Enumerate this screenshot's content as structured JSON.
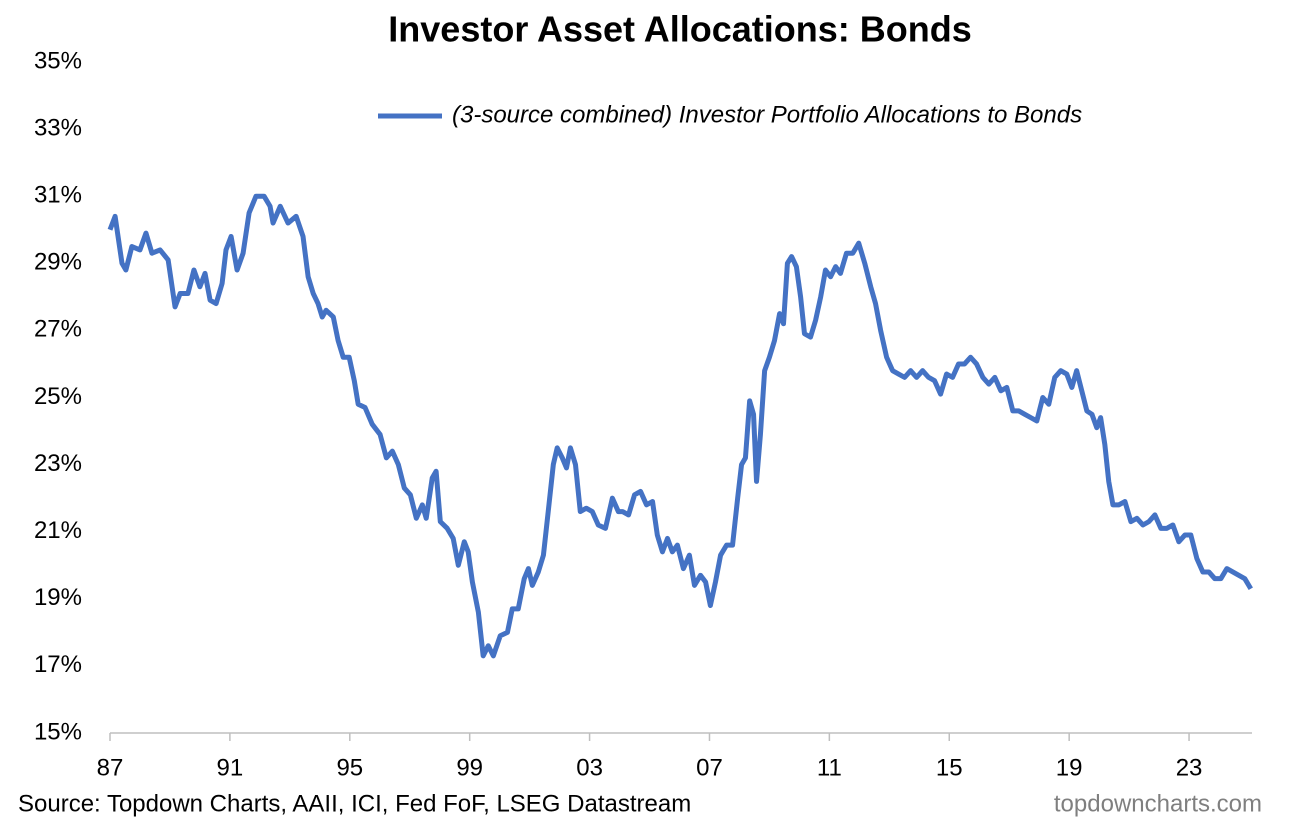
{
  "chart_data": {
    "type": "line",
    "title": "Investor Asset Allocations: Bonds",
    "source": "Source: Topdown Charts, AAII, ICI, Fed FoF, LSEG Datastream",
    "watermark": "topdowncharts.com",
    "legend": "upper-center",
    "grid": false,
    "x": [
      1987.0,
      1987.17,
      1987.4,
      1987.53,
      1987.73,
      1988.0,
      1988.2,
      1988.4,
      1988.67,
      1988.94,
      1989.17,
      1989.34,
      1989.6,
      1989.8,
      1990.0,
      1990.17,
      1990.34,
      1990.54,
      1990.74,
      1990.87,
      1991.04,
      1991.24,
      1991.44,
      1991.64,
      1991.87,
      1992.14,
      1992.34,
      1992.44,
      1992.68,
      1992.94,
      1993.21,
      1993.44,
      1993.61,
      1993.78,
      1993.94,
      1994.08,
      1994.21,
      1994.45,
      1994.61,
      1994.78,
      1994.98,
      1995.15,
      1995.28,
      1995.51,
      1995.75,
      1996.01,
      1996.22,
      1996.42,
      1996.62,
      1996.82,
      1997.02,
      1997.22,
      1997.42,
      1997.55,
      1997.75,
      1997.88,
      1998.02,
      1998.25,
      1998.45,
      1998.62,
      1998.82,
      1998.95,
      1999.09,
      1999.29,
      1999.45,
      1999.62,
      1999.79,
      2000.02,
      2000.26,
      2000.42,
      2000.62,
      2000.82,
      2000.96,
      2001.09,
      2001.29,
      2001.46,
      2001.62,
      2001.79,
      2001.92,
      2002.09,
      2002.23,
      2002.36,
      2002.53,
      2002.69,
      2002.89,
      2003.09,
      2003.29,
      2003.53,
      2003.76,
      2003.96,
      2004.1,
      2004.3,
      2004.5,
      2004.7,
      2004.9,
      2005.1,
      2005.26,
      2005.43,
      2005.6,
      2005.76,
      2005.93,
      2006.13,
      2006.33,
      2006.5,
      2006.7,
      2006.87,
      2007.03,
      2007.2,
      2007.37,
      2007.57,
      2007.77,
      2007.94,
      2008.07,
      2008.2,
      2008.34,
      2008.47,
      2008.57,
      2008.7,
      2008.84,
      2009.0,
      2009.17,
      2009.34,
      2009.47,
      2009.6,
      2009.74,
      2009.9,
      2010.04,
      2010.17,
      2010.37,
      2010.54,
      2010.71,
      2010.87,
      2011.04,
      2011.21,
      2011.37,
      2011.57,
      2011.78,
      2011.98,
      2012.18,
      2012.38,
      2012.54,
      2012.71,
      2012.91,
      2013.11,
      2013.31,
      2013.51,
      2013.71,
      2013.91,
      2014.11,
      2014.31,
      2014.51,
      2014.71,
      2014.91,
      2015.11,
      2015.31,
      2015.51,
      2015.71,
      2015.91,
      2016.12,
      2016.32,
      2016.52,
      2016.72,
      2016.92,
      2017.12,
      2017.32,
      2017.52,
      2017.72,
      2017.92,
      2018.12,
      2018.32,
      2018.52,
      2018.72,
      2018.92,
      2019.09,
      2019.25,
      2019.42,
      2019.59,
      2019.76,
      2019.92,
      2020.05,
      2020.19,
      2020.32,
      2020.46,
      2020.66,
      2020.86,
      2021.06,
      2021.26,
      2021.46,
      2021.66,
      2021.86,
      2022.06,
      2022.26,
      2022.46,
      2022.66,
      2022.86,
      2023.06,
      2023.26,
      2023.46,
      2023.66,
      2023.86,
      2024.06,
      2024.26,
      2024.46,
      2024.66,
      2024.86,
      2025.06
    ],
    "series": [
      {
        "name": "(3-source combined) Investor Portfolio Allocations to Bonds",
        "color": "#4472c4",
        "values": [
          30.0,
          30.4,
          29.0,
          28.8,
          29.5,
          29.4,
          29.9,
          29.3,
          29.4,
          29.1,
          27.7,
          28.1,
          28.1,
          28.8,
          28.3,
          28.7,
          27.9,
          27.8,
          28.4,
          29.4,
          29.8,
          28.8,
          29.3,
          30.5,
          31.0,
          31.0,
          30.7,
          30.2,
          30.7,
          30.2,
          30.4,
          29.8,
          28.6,
          28.1,
          27.8,
          27.4,
          27.6,
          27.4,
          26.7,
          26.2,
          26.2,
          25.5,
          24.8,
          24.7,
          24.2,
          23.9,
          23.2,
          23.4,
          23.0,
          22.3,
          22.1,
          21.4,
          21.8,
          21.4,
          22.6,
          22.8,
          21.3,
          21.1,
          20.8,
          20.0,
          20.7,
          20.4,
          19.5,
          18.6,
          17.3,
          17.6,
          17.3,
          17.9,
          18.0,
          18.7,
          18.7,
          19.6,
          19.9,
          19.4,
          19.8,
          20.3,
          21.6,
          23.0,
          23.5,
          23.2,
          22.9,
          23.5,
          23.0,
          21.6,
          21.7,
          21.6,
          21.2,
          21.1,
          22.0,
          21.6,
          21.6,
          21.5,
          22.1,
          22.2,
          21.8,
          21.9,
          20.9,
          20.4,
          20.8,
          20.4,
          20.6,
          19.9,
          20.3,
          19.4,
          19.7,
          19.5,
          18.8,
          19.5,
          20.3,
          20.6,
          20.6,
          22.0,
          23.0,
          23.2,
          24.9,
          24.5,
          22.5,
          23.9,
          25.8,
          26.2,
          26.7,
          27.5,
          27.2,
          29.0,
          29.2,
          28.9,
          28.0,
          26.9,
          26.8,
          27.3,
          28.0,
          28.8,
          28.6,
          28.9,
          28.7,
          29.3,
          29.3,
          29.6,
          29.0,
          28.3,
          27.8,
          27.0,
          26.2,
          25.8,
          25.7,
          25.6,
          25.8,
          25.6,
          25.8,
          25.6,
          25.5,
          25.1,
          25.7,
          25.6,
          26.0,
          26.0,
          26.2,
          26.0,
          25.6,
          25.4,
          25.6,
          25.2,
          25.3,
          24.6,
          24.6,
          24.5,
          24.4,
          24.3,
          25.0,
          24.8,
          25.6,
          25.8,
          25.7,
          25.3,
          25.8,
          25.2,
          24.6,
          24.5,
          24.1,
          24.4,
          23.6,
          22.5,
          21.8,
          21.8,
          21.9,
          21.3,
          21.4,
          21.2,
          21.3,
          21.5,
          21.1,
          21.1,
          21.2,
          20.7,
          20.9,
          20.9,
          20.2,
          19.8,
          19.8,
          19.6,
          19.6,
          19.9,
          19.8,
          19.7,
          19.6,
          19.3
        ]
      }
    ],
    "xlim": [
      1987,
      2025.1
    ],
    "xticks": [
      {
        "value": 1987,
        "label": "87"
      },
      {
        "value": 1991,
        "label": "91"
      },
      {
        "value": 1995,
        "label": "95"
      },
      {
        "value": 1999,
        "label": "99"
      },
      {
        "value": 2003,
        "label": "03"
      },
      {
        "value": 2007,
        "label": "07"
      },
      {
        "value": 2011,
        "label": "11"
      },
      {
        "value": 2015,
        "label": "15"
      },
      {
        "value": 2019,
        "label": "19"
      },
      {
        "value": 2023,
        "label": "23"
      }
    ],
    "ylim": [
      15,
      35
    ],
    "yticks": [
      {
        "value": 15,
        "label": "15%"
      },
      {
        "value": 17,
        "label": "17%"
      },
      {
        "value": 19,
        "label": "19%"
      },
      {
        "value": 21,
        "label": "21%"
      },
      {
        "value": 23,
        "label": "23%"
      },
      {
        "value": 25,
        "label": "25%"
      },
      {
        "value": 27,
        "label": "27%"
      },
      {
        "value": 29,
        "label": "29%"
      },
      {
        "value": 31,
        "label": "31%"
      },
      {
        "value": 33,
        "label": "33%"
      },
      {
        "value": 35,
        "label": "35%"
      }
    ]
  }
}
